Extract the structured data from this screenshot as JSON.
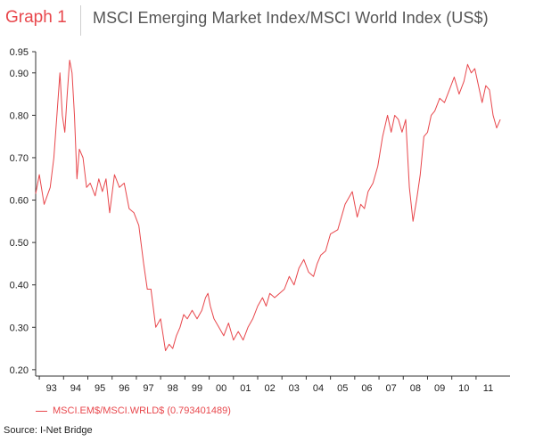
{
  "header": {
    "graph_label": "Graph 1",
    "title": "MSCI Emerging Market Index/MSCI World Index (US$)"
  },
  "legend": {
    "label": "MSCI.EM$/MSCI.WRLD$ (0.793401489)",
    "color": "#e8474c"
  },
  "source": "Source: I-Net Bridge",
  "chart_data": {
    "type": "line",
    "title": "MSCI Emerging Market Index/MSCI World Index (US$)",
    "xlabel": "",
    "ylabel": "",
    "ylim": [
      0.185,
      0.95
    ],
    "xlim": [
      1992.85,
      2012.4
    ],
    "grid": false,
    "legend_position": "bottom-left",
    "y_ticks": [
      0.2,
      0.3,
      0.4,
      0.5,
      0.6,
      0.7,
      0.8,
      0.9,
      0.95
    ],
    "y_tick_labels": [
      "0.20",
      "0.30",
      "0.40",
      "0.50",
      "0.60",
      "0.70",
      "0.80",
      "0.90",
      "0.95"
    ],
    "x_ticks": [
      1993,
      1994,
      1995,
      1996,
      1997,
      1998,
      1999,
      2000,
      2001,
      2002,
      2003,
      2004,
      2005,
      2006,
      2007,
      2008,
      2009,
      2010,
      2011
    ],
    "x_tick_labels": [
      "93",
      "94",
      "95",
      "96",
      "97",
      "98",
      "99",
      "00",
      "01",
      "02",
      "03",
      "04",
      "05",
      "06",
      "07",
      "08",
      "09",
      "10",
      "11"
    ],
    "series": [
      {
        "name": "MSCI.EM$/MSCI.WRLD$ (0.793401489)",
        "color": "#e8474c",
        "x": [
          1992.85,
          1993.0,
          1993.2,
          1993.45,
          1993.6,
          1993.75,
          1993.85,
          1993.95,
          1994.05,
          1994.15,
          1994.25,
          1994.35,
          1994.45,
          1994.55,
          1994.65,
          1994.8,
          1994.95,
          1995.1,
          1995.3,
          1995.45,
          1995.6,
          1995.75,
          1995.9,
          1996.1,
          1996.3,
          1996.5,
          1996.7,
          1996.9,
          1997.1,
          1997.3,
          1997.45,
          1997.6,
          1997.8,
          1998.0,
          1998.2,
          1998.35,
          1998.5,
          1998.65,
          1998.8,
          1998.95,
          1999.1,
          1999.3,
          1999.5,
          1999.7,
          1999.85,
          1999.95,
          2000.05,
          2000.2,
          2000.4,
          2000.6,
          2000.8,
          2001.0,
          2001.2,
          2001.4,
          2001.6,
          2001.8,
          2002.0,
          2002.2,
          2002.35,
          2002.5,
          2002.7,
          2002.9,
          2003.1,
          2003.3,
          2003.5,
          2003.7,
          2003.9,
          2004.1,
          2004.3,
          2004.45,
          2004.6,
          2004.8,
          2005.0,
          2005.3,
          2005.6,
          2005.9,
          2006.1,
          2006.25,
          2006.4,
          2006.55,
          2006.75,
          2006.95,
          2007.15,
          2007.35,
          2007.5,
          2007.65,
          2007.8,
          2007.95,
          2008.1,
          2008.25,
          2008.4,
          2008.55,
          2008.7,
          2008.85,
          2009.0,
          2009.15,
          2009.3,
          2009.5,
          2009.7,
          2009.9,
          2010.1,
          2010.3,
          2010.5,
          2010.65,
          2010.8,
          2010.95,
          2011.1,
          2011.25,
          2011.4,
          2011.55,
          2011.7,
          2011.85,
          2012.0
        ],
        "values": [
          0.615,
          0.66,
          0.59,
          0.63,
          0.7,
          0.82,
          0.9,
          0.8,
          0.76,
          0.85,
          0.93,
          0.9,
          0.8,
          0.65,
          0.72,
          0.7,
          0.63,
          0.64,
          0.61,
          0.65,
          0.62,
          0.65,
          0.57,
          0.66,
          0.63,
          0.64,
          0.58,
          0.57,
          0.54,
          0.45,
          0.39,
          0.39,
          0.3,
          0.32,
          0.245,
          0.26,
          0.25,
          0.28,
          0.3,
          0.33,
          0.32,
          0.34,
          0.32,
          0.34,
          0.37,
          0.38,
          0.35,
          0.32,
          0.3,
          0.28,
          0.31,
          0.27,
          0.29,
          0.27,
          0.3,
          0.32,
          0.35,
          0.37,
          0.35,
          0.38,
          0.37,
          0.38,
          0.39,
          0.42,
          0.4,
          0.44,
          0.46,
          0.43,
          0.42,
          0.45,
          0.47,
          0.48,
          0.52,
          0.53,
          0.59,
          0.62,
          0.56,
          0.59,
          0.58,
          0.62,
          0.64,
          0.68,
          0.75,
          0.8,
          0.76,
          0.8,
          0.79,
          0.76,
          0.79,
          0.63,
          0.55,
          0.6,
          0.66,
          0.75,
          0.76,
          0.8,
          0.81,
          0.84,
          0.83,
          0.86,
          0.89,
          0.85,
          0.88,
          0.92,
          0.9,
          0.91,
          0.87,
          0.83,
          0.87,
          0.86,
          0.8,
          0.77,
          0.79
        ]
      }
    ]
  }
}
